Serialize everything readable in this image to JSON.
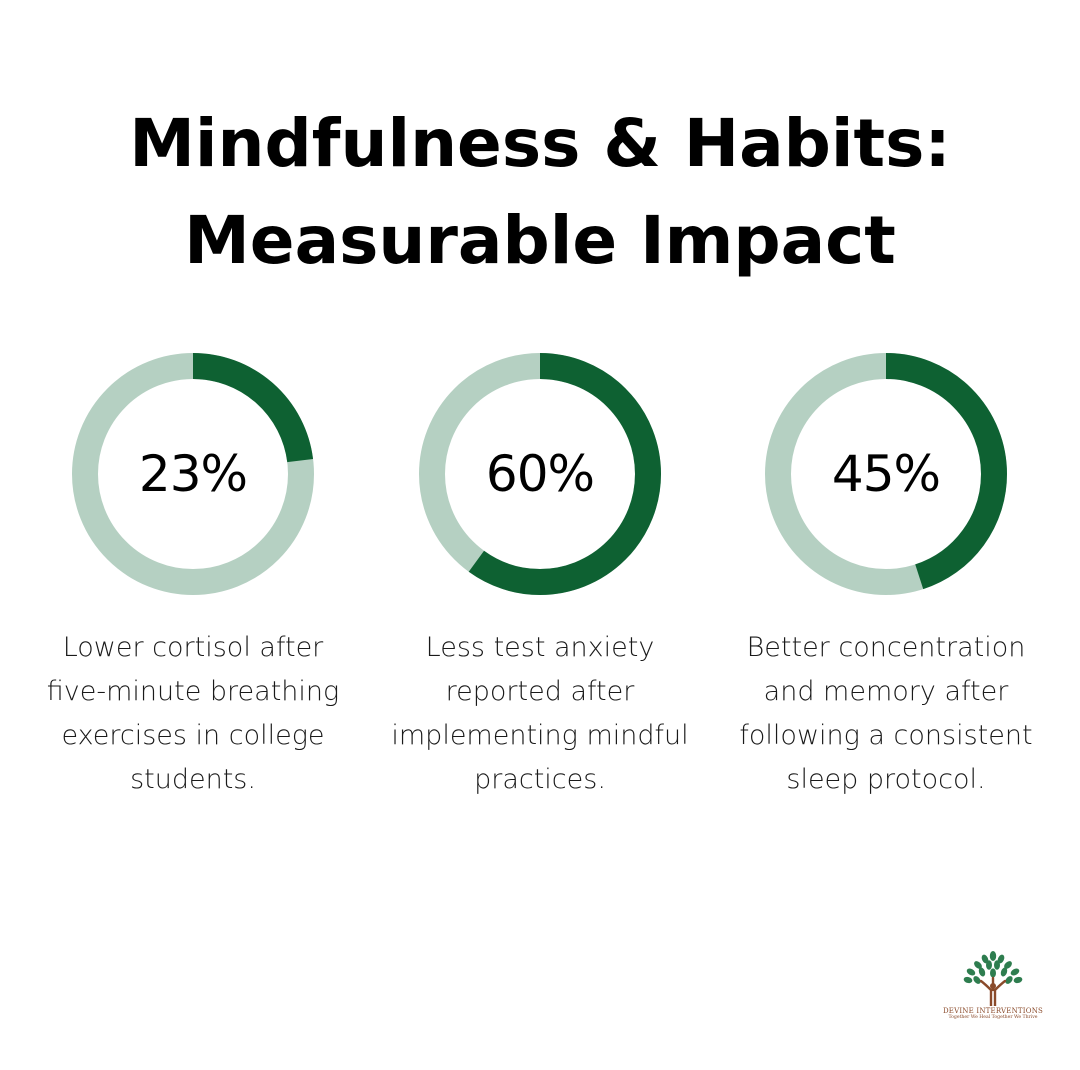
{
  "title": {
    "line1": "Mindfulness & Habits:",
    "line2": "Measurable Impact"
  },
  "colors": {
    "track": "#b5d0c2",
    "fill": "#0e6132",
    "text": "#000000",
    "brand": "#8a4a2a"
  },
  "chart_data": [
    {
      "type": "pie",
      "value": 23,
      "label": "23%",
      "description": "Lower cortisol after five-minute breathing exercises in college students."
    },
    {
      "type": "pie",
      "value": 60,
      "label": "60%",
      "description": "Less test anxiety reported after implementing mindful practices."
    },
    {
      "type": "pie",
      "value": 45,
      "label": "45%",
      "description": "Better concentration and memory after following a consistent sleep protocol."
    }
  ],
  "logo": {
    "icon": "tree-logo-icon",
    "name": "DEVINE INTERVENTIONS",
    "tagline": "Together We Heal Together We Thrive"
  }
}
